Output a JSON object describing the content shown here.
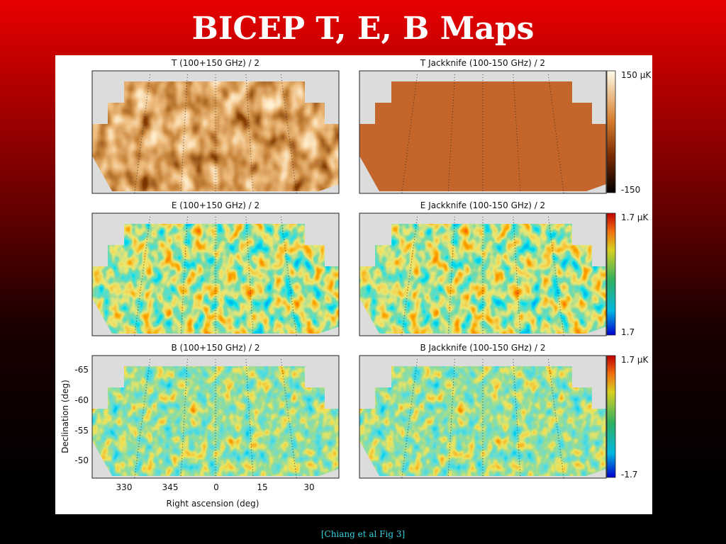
{
  "title": "BICEP T, E, B Maps",
  "figure": {
    "panels": [
      {
        "title": "T  (100+150 GHz) / 2"
      },
      {
        "title": "T Jackknife  (100-150 GHz) / 2"
      },
      {
        "title": "E  (100+150 GHz) / 2"
      },
      {
        "title": "E Jackknife  (100-150 GHz) / 2"
      },
      {
        "title": "B  (100+150 GHz) / 2"
      },
      {
        "title": "B Jackknife  (100-150 GHz) / 2"
      }
    ],
    "colorbars": [
      {
        "max": "150 µK",
        "min": "-150"
      },
      {
        "max": "1.7 µK",
        "min": "1.7"
      },
      {
        "max": "1.7 µK",
        "min": "-1.7"
      }
    ],
    "y_axis": {
      "label": "Declination (deg)",
      "ticks": [
        "-65",
        "-60",
        "-55",
        "-50"
      ]
    },
    "x_axis": {
      "label": "Right ascension (deg)",
      "ticks": [
        "330",
        "345",
        "0",
        "15",
        "30"
      ]
    }
  },
  "citation": "[Chiang et al Fig 3]"
}
